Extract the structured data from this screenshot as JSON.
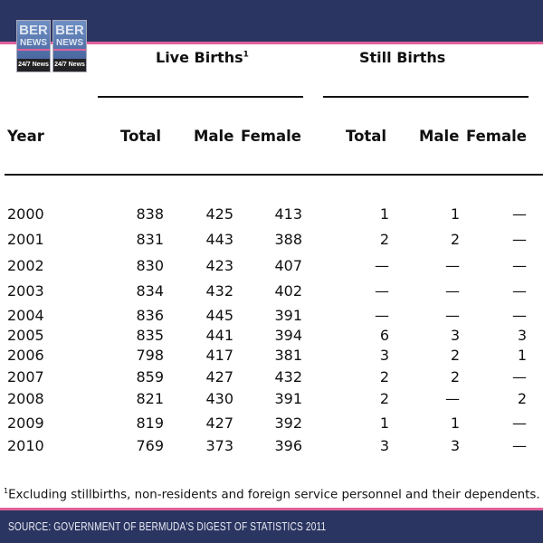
{
  "logo": {
    "text": "BER NEWS",
    "tagline": "24/7 News"
  },
  "headers": {
    "live_births": "Live Births",
    "live_births_note": "1",
    "still_births": "Still Births",
    "year": "Year",
    "total": "Total",
    "male": "Male",
    "female": "Female"
  },
  "rows": [
    [
      "2000",
      "838",
      "425",
      "413",
      "1",
      "1",
      "—"
    ],
    [
      "2001",
      "831",
      "443",
      "388",
      "2",
      "2",
      "—"
    ],
    [
      "2002",
      "830",
      "423",
      "407",
      "—",
      "—",
      "—"
    ],
    [
      "2003",
      "834",
      "432",
      "402",
      "—",
      "—",
      "—"
    ],
    [
      "2004",
      "836",
      "445",
      "391",
      "—",
      "—",
      "—"
    ],
    [
      "2005",
      "835",
      "441",
      "394",
      "6",
      "3",
      "3"
    ],
    [
      "2006",
      "798",
      "417",
      "381",
      "3",
      "2",
      "1"
    ],
    [
      "2007",
      "859",
      "427",
      "432",
      "2",
      "2",
      "—"
    ],
    [
      "2008",
      "821",
      "430",
      "391",
      "2",
      "—",
      "2"
    ],
    [
      "2009",
      "819",
      "427",
      "392",
      "1",
      "1",
      "—"
    ],
    [
      "2010",
      "769",
      "373",
      "396",
      "3",
      "3",
      "—"
    ]
  ],
  "footnote": {
    "mark": "1",
    "text": "Excluding stillbirths, non-residents and foreign service personnel and their dependents."
  },
  "source": "SOURCE: GOVERNMENT OF BERMUDA'S DIGEST OF STATISTICS 2011",
  "colors": {
    "navy": "#2b3561",
    "pink": "#e0609a"
  }
}
